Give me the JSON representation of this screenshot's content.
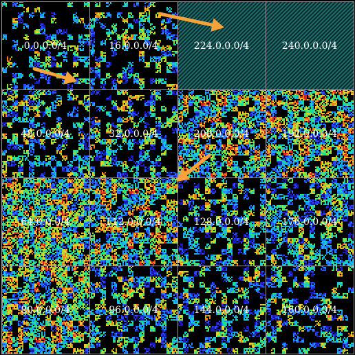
{
  "colors": {
    "background": "#000000",
    "grid": "#9a9a9a",
    "reserved_hatch_a": "#1f6e6e",
    "reserved_hatch_b": "#0a2a2a",
    "arrow": "#f5a33a",
    "label": "#ffffff",
    "heat_scale": [
      "#1a1ab8",
      "#2a4cff",
      "#1f8fff",
      "#19c9d9",
      "#22e08a",
      "#8de03a",
      "#e8d12a",
      "#f07a1c",
      "#d42020"
    ]
  },
  "hilbert_map": {
    "blocks": [
      {
        "label": "0.0.0.0/4",
        "density": 0.35,
        "reserved": false
      },
      {
        "label": "16.0.0.0/4",
        "density": 0.4,
        "reserved": false
      },
      {
        "label": "224.0.0.0/4",
        "density": 0,
        "reserved": true
      },
      {
        "label": "240.0.0.0/4",
        "density": 0,
        "reserved": true
      },
      {
        "label": "48.0.0.0/4",
        "density": 0.55,
        "reserved": false
      },
      {
        "label": "32.0.0.0/4",
        "density": 0.45,
        "reserved": false
      },
      {
        "label": "208.0.0.0/4",
        "density": 0.85,
        "reserved": false
      },
      {
        "label": "192.0.0.0/4",
        "density": 0.85,
        "reserved": false
      },
      {
        "label": "64.0.0.0/4",
        "density": 0.95,
        "reserved": false
      },
      {
        "label": "112.0.0.0/4",
        "density": 0.85,
        "reserved": false
      },
      {
        "label": "128.0.0.0/4",
        "density": 0.55,
        "reserved": false
      },
      {
        "label": "176.0.0.0/4",
        "density": 0.7,
        "reserved": false
      },
      {
        "label": "80.0.0.0/4",
        "density": 0.85,
        "reserved": false
      },
      {
        "label": "96.0.0.0/4",
        "density": 0.6,
        "reserved": false
      },
      {
        "label": "144.0.0.0/4",
        "density": 0.5,
        "reserved": false
      },
      {
        "label": "160.0.0.0/4",
        "density": 0.5,
        "reserved": false
      }
    ],
    "arrows": [
      {
        "name": "arrow-16-to-224"
      },
      {
        "name": "arrow-0-to-32"
      },
      {
        "name": "arrow-208-to-112"
      }
    ]
  }
}
